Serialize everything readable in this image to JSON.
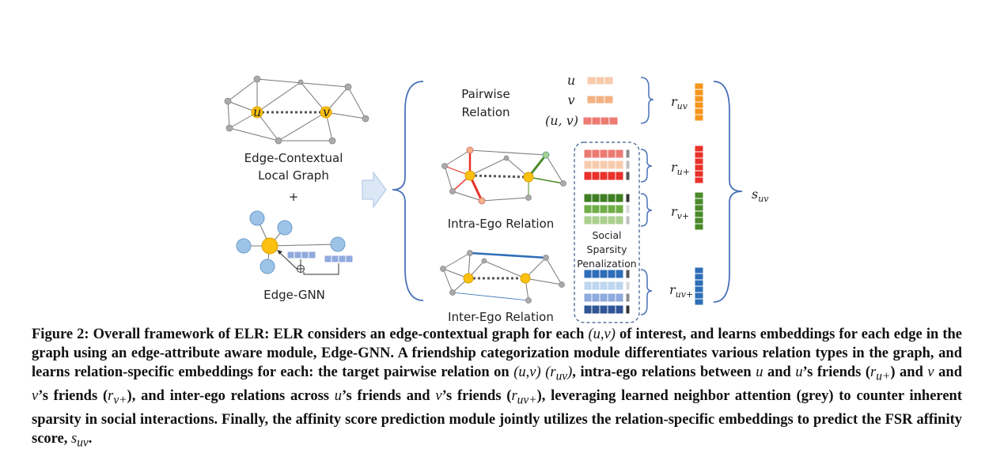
{
  "left_panel": {
    "local_graph_label_line1": "Edge-Contextual",
    "local_graph_label_line2": "Local Graph",
    "plus": "+",
    "gnn_label": "Edge-GNN",
    "node_u": "u",
    "node_v": "v"
  },
  "pairwise": {
    "label_line1": "Pairwise",
    "label_line2": "Relation",
    "row_u": "u",
    "row_v": "v",
    "row_uv": "(u, v)",
    "output": "r_uv",
    "output_base": "r",
    "output_sub": "uv"
  },
  "intra": {
    "label": "Intra-Ego Relation",
    "output_u_base": "r",
    "output_u_sub": "u+",
    "output_v_base": "r",
    "output_v_sub": "v+"
  },
  "inter": {
    "label": "Inter-Ego Relation",
    "output_base": "r",
    "output_sub": "uv+"
  },
  "penalization": {
    "line1": "Social",
    "line2": "Sparsity",
    "line3": "Penalization"
  },
  "score": {
    "base": "s",
    "sub": "uv"
  },
  "colors": {
    "orange": "#f7941d",
    "red": "#e8312a",
    "green": "#4a8a2a",
    "blue": "#2e6eb8",
    "node_yellow": "#fcc010",
    "node_blue": "#9dc3e6",
    "brace": "#4a72b8"
  },
  "caption": {
    "p1": "Figure 2: Overall framework of ELR: ELR considers an edge-contextual graph for each ",
    "m1": "(u,v)",
    "p2": " of interest, and learns embeddings for each edge in the graph using an edge-attribute aware module, Edge-GNN. A friendship categorization module differentiates various relation types in the graph, and learns relation-specific embeddings for each: the target pairwise relation on ",
    "m2": "(u,v) (r",
    "m2sub": "uv",
    "m2b": ")",
    "p3": ", intra-ego relations between ",
    "m3": "u",
    "p4": " and ",
    "m4": "u",
    "p5": "’s friends (",
    "m5": "r",
    "m5sub": "u+",
    "p6": ") and ",
    "m6": "v",
    "p7": " and ",
    "m7": "v",
    "p8": "’s friends (",
    "m8": "r",
    "m8sub": "v+",
    "p9": "), and inter-ego relations across ",
    "m9": "u",
    "p10": "’s friends and ",
    "m10": "v",
    "p11": "’s friends (",
    "m11": "r",
    "m11sub": "uv+",
    "p12": "), leveraging learned neighbor attention (grey) to counter inherent sparsity in social interactions. Finally, the affinity score prediction module jointly utilizes the relation-specific embeddings to predict the FSR affinity score, ",
    "m12": "s",
    "m12sub": "uv",
    "p13": "."
  }
}
